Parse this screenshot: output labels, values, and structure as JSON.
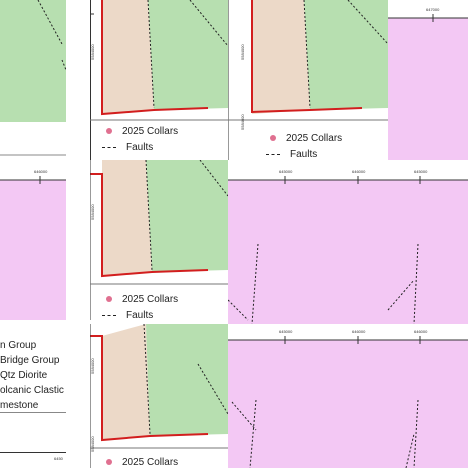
{
  "legend": {
    "collars_label": "2025 Collars",
    "faults_label": "Faults"
  },
  "geology_legend": {
    "items": [
      "n Group",
      "Bridge Group",
      "Qtz Diorite",
      "olcanic Clastic Ro",
      "mestone"
    ]
  },
  "coordinates": {
    "easting_a": "645000",
    "easting_b": "646000",
    "easting_c": "647000",
    "easting_d": "645000",
    "easting_e": "646000",
    "easting_partial": "6450",
    "northing_a": "5584000",
    "northing_b": "5584000",
    "northing_c": "5584000"
  },
  "colors": {
    "green_unit": "#b7dfb0",
    "tan_unit": "#ecd9c8",
    "pink_unit": "#f3c8f4",
    "boundary": "#d21e1e",
    "collar": "#e07090"
  }
}
